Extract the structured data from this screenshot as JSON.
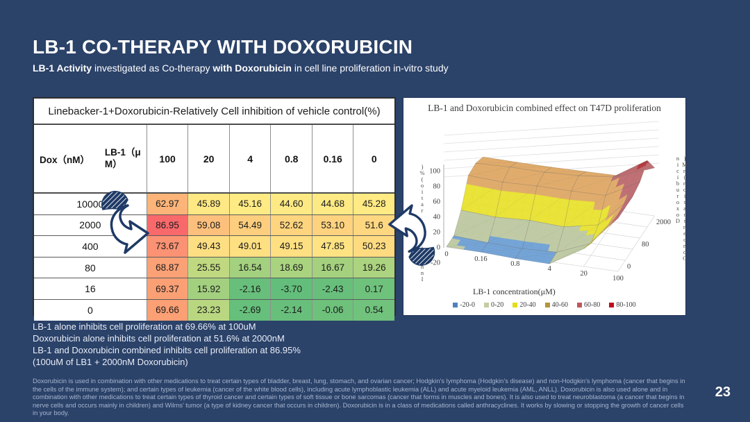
{
  "slide": {
    "title": "LB-1 CO-THERAPY WITH DOXORUBICIN",
    "subtitle_parts": [
      {
        "t": "LB-1 Activity"
      },
      {
        "t": " investigated as Co-therapy "
      },
      {
        "t": "with Doxorubicin"
      },
      {
        "t": " in cell line proliferation in-vitro study"
      }
    ],
    "page_number": "23",
    "background_color": "#2B4269"
  },
  "table": {
    "title": "Linebacker-1+Doxorubicin-Relatively Cell inhibition of vehicle control(%)",
    "header": {
      "row_axis_label": "Dox（nM）",
      "col_axis_label": "LB-1（μM）",
      "columns": [
        "100",
        "20",
        "4",
        "0.8",
        "0.16",
        "0"
      ]
    },
    "rows": [
      {
        "label": "10000",
        "cells": [
          {
            "v": "62.97",
            "c": "#FCB479"
          },
          {
            "v": "45.89",
            "c": "#FEE883"
          },
          {
            "v": "45.16",
            "c": "#FFEB84"
          },
          {
            "v": "44.60",
            "c": "#FDEA84"
          },
          {
            "v": "44.68",
            "c": "#FDEA84"
          },
          {
            "v": "45.28",
            "c": "#FFEA84"
          }
        ]
      },
      {
        "label": "2000",
        "cells": [
          {
            "v": "86.95",
            "c": "#F8696B"
          },
          {
            "v": "59.08",
            "c": "#FDC07C"
          },
          {
            "v": "54.49",
            "c": "#FDCE7E"
          },
          {
            "v": "52.62",
            "c": "#FED47F"
          },
          {
            "v": "53.10",
            "c": "#FED27F"
          },
          {
            "v": "51.6",
            "c": "#FED780"
          }
        ]
      },
      {
        "label": "400",
        "cells": [
          {
            "v": "73.67",
            "c": "#FA9273"
          },
          {
            "v": "49.43",
            "c": "#FEDE82"
          },
          {
            "v": "49.01",
            "c": "#FEDF82"
          },
          {
            "v": "49.15",
            "c": "#FEDF82"
          },
          {
            "v": "47.85",
            "c": "#FFE383"
          },
          {
            "v": "50.23",
            "c": "#FEDB81"
          }
        ]
      },
      {
        "label": "80",
        "cells": [
          {
            "v": "68.87",
            "c": "#FBA176"
          },
          {
            "v": "25.55",
            "c": "#C0D980"
          },
          {
            "v": "16.54",
            "c": "#A4D17F"
          },
          {
            "v": "18.69",
            "c": "#AAD37F"
          },
          {
            "v": "16.67",
            "c": "#A5D17F"
          },
          {
            "v": "19.26",
            "c": "#ACD37F"
          }
        ]
      },
      {
        "label": "16",
        "cells": [
          {
            "v": "69.37",
            "c": "#FBA075"
          },
          {
            "v": "15.92",
            "c": "#A2D07F"
          },
          {
            "v": "-2.16",
            "c": "#68BF7B"
          },
          {
            "v": "-3.70",
            "c": "#63BE7B"
          },
          {
            "v": "-2.43",
            "c": "#67BF7B"
          },
          {
            "v": "0.17",
            "c": "#6FC27C"
          }
        ]
      },
      {
        "label": "0",
        "cells": [
          {
            "v": "69.66",
            "c": "#FB9F75"
          },
          {
            "v": "23.23",
            "c": "#B9D780"
          },
          {
            "v": "-2.69",
            "c": "#66BF7B"
          },
          {
            "v": "-2.14",
            "c": "#68BF7B"
          },
          {
            "v": "-0.06",
            "c": "#6EC17B"
          },
          {
            "v": "0.54",
            "c": "#70C27C"
          }
        ]
      }
    ]
  },
  "summary_lines": [
    "LB-1 alone inhibits cell proliferation at 69.66% at 100uM",
    "Doxorubicin alone inhibits cell proliferation at 51.6% at 2000nM",
    "LB-1 and Doxorubicin combined inhibits cell proliferation at 86.95%",
    "(100uM of LB1 + 2000nM Doxorubicin)"
  ],
  "footnote": "Doxorubicin is used in combination with other medications to treat certain types of bladder, breast, lung, stomach, and ovarian cancer; Hodgkin’s lymphoma (Hodgkin’s disease) and non-Hodgkin’s lymphoma (cancer that begins in the cells of the immune system); and certain types of leukemia (cancer of the white blood cells), including acute lymphoblastic leukemia (ALL) and acute myeloid leukemia (AML, ANLL). Doxorubicin is also used alone and in combination with other medications to treat certain types of thyroid cancer and certain types of soft tissue or bone sarcomas (cancer that forms in muscles and bones). It is also used to treat neuroblastoma (a cancer that begins in nerve cells and occurs mainly in children) and Wilms’ tumor (a type of kidney cancer that occurs in children). Doxorubicin is in a class of medications called anthracyclines. It works by slowing or stopping the growth of cancer cells in your body.",
  "chart_data": {
    "type": "surface3d",
    "title": "LB-1 and Doxorubicin combined effect on T47D proliferation",
    "x_label": "LB-1 concentration(μM)",
    "x_ticks": [
      "0",
      "0.16",
      "0.8",
      "4",
      "20",
      "100"
    ],
    "y_label": "Inhibition ratio(%)",
    "y_label_stacked": ")%(oitar noitibihnI",
    "y_ticks": [
      100,
      80,
      60,
      40,
      20,
      0,
      -20
    ],
    "z_label": "Doxorubicin Concentration(nM)",
    "z_label_stacked": ")Mn(noitartnecnoC niciburoxoD",
    "z_rows": [
      "0",
      "16",
      "80",
      "400",
      "2000",
      "10000"
    ],
    "z_ticks_visible": [
      [
        "0",
        0
      ],
      [
        "80",
        2
      ],
      [
        "2000",
        4
      ]
    ],
    "values_note": "values[dox_row][lb1_col]; rows front-to-back = z_rows, cols left-to-right = x_ticks",
    "values": [
      [
        0.54,
        -0.06,
        -2.14,
        -2.69,
        23.23,
        69.66
      ],
      [
        0.17,
        -2.43,
        -3.7,
        -2.16,
        15.92,
        69.37
      ],
      [
        19.26,
        16.67,
        18.69,
        16.54,
        25.55,
        68.87
      ],
      [
        50.23,
        47.85,
        49.15,
        49.01,
        49.43,
        73.67
      ],
      [
        51.6,
        53.1,
        52.62,
        54.49,
        59.08,
        86.95
      ],
      [
        45.28,
        44.68,
        44.6,
        45.16,
        45.89,
        62.97
      ]
    ],
    "legend": [
      {
        "label": "-20-0",
        "color": "#4F81BD"
      },
      {
        "label": "0-20",
        "color": "#C3CDA3"
      },
      {
        "label": "20-40",
        "color": "#E3DE17"
      },
      {
        "label": "40-60",
        "color": "#B3953B"
      },
      {
        "label": "60-80",
        "color": "#C0565C"
      },
      {
        "label": "80-100",
        "color": "#C00B1E"
      }
    ],
    "bands": [
      [
        -25,
        0,
        "#6FA0D4"
      ],
      [
        0,
        20,
        "#BDC9A2"
      ],
      [
        20,
        40,
        "#E8E232"
      ],
      [
        40,
        60,
        "#DFA967"
      ],
      [
        60,
        80,
        "#BC6B70"
      ],
      [
        80,
        101,
        "#B53B3E"
      ]
    ]
  }
}
